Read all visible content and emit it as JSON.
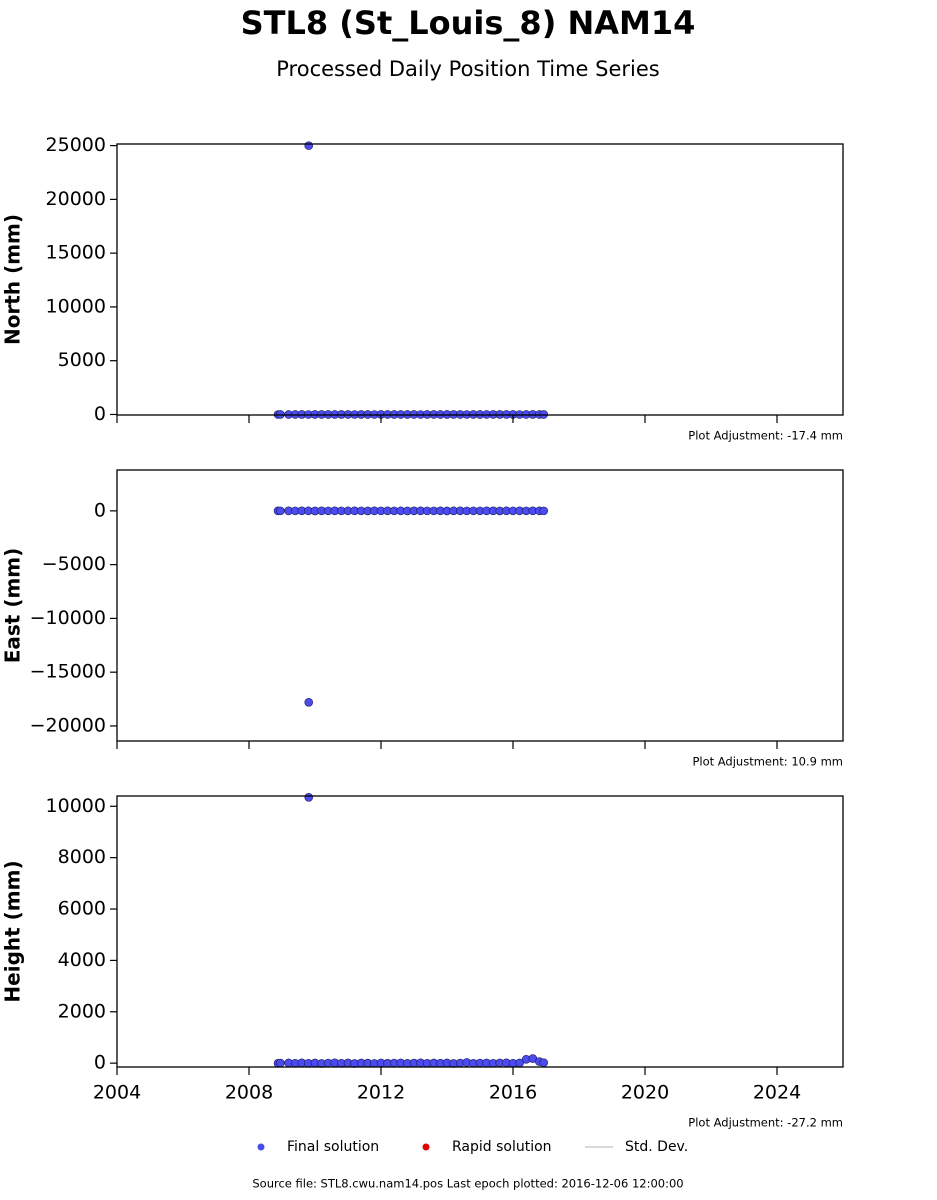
{
  "title": "STL8 (St_Louis_8) NAM14",
  "subtitle": "Processed Daily Position Time Series",
  "legend": [
    {
      "name": "Final solution",
      "color": "#4b4bf0",
      "marker": "circle"
    },
    {
      "name": "Rapid solution",
      "color": "#e00000",
      "marker": "circle"
    },
    {
      "name": "Std. Dev.",
      "color": "#cccccc",
      "marker": "line"
    }
  ],
  "footer": "Source file: STL8.cwu.nam14.pos  Last epoch plotted: 2016-12-06 12:00:00",
  "chart_data": [
    {
      "type": "scatter",
      "ylabel": "North (mm)",
      "note": "Plot Adjustment: -17.4 mm",
      "color": "#4b4bf0",
      "xlim": [
        2004,
        2026
      ],
      "ylim": [
        -50,
        25150
      ],
      "yticks": [
        0,
        5000,
        10000,
        15000,
        20000,
        25000
      ],
      "x": [
        2008.88,
        2008.95,
        2009.2,
        2009.4,
        2009.6,
        2009.8,
        2009.81,
        2010.0,
        2010.2,
        2010.4,
        2010.6,
        2010.8,
        2011.0,
        2011.2,
        2011.4,
        2011.6,
        2011.8,
        2012.0,
        2012.2,
        2012.4,
        2012.6,
        2012.8,
        2013.0,
        2013.2,
        2013.4,
        2013.6,
        2013.8,
        2014.0,
        2014.2,
        2014.4,
        2014.6,
        2014.8,
        2015.0,
        2015.2,
        2015.4,
        2015.6,
        2015.8,
        2016.0,
        2016.2,
        2016.4,
        2016.6,
        2016.8,
        2016.93
      ],
      "values": [
        -4,
        3,
        -2,
        1,
        5,
        -3,
        25000,
        2,
        -1,
        4,
        -2,
        3,
        0,
        -3,
        2,
        1,
        -4,
        3,
        -1,
        2,
        -2,
        4,
        1,
        -3,
        2,
        0,
        -2,
        3,
        -1,
        1,
        -3,
        2,
        4,
        -2,
        0,
        3,
        -1,
        2,
        -4,
        1,
        3,
        -2,
        0
      ]
    },
    {
      "type": "scatter",
      "ylabel": "East (mm)",
      "note": "Plot Adjustment: 10.9 mm",
      "color": "#4b4bf0",
      "xlim": [
        2004,
        2026
      ],
      "ylim": [
        -21400,
        3800
      ],
      "yticks": [
        {
          "value": -20000,
          "label": "−20000"
        },
        {
          "value": -15000,
          "label": "−15000"
        },
        {
          "value": -10000,
          "label": "−10000"
        },
        {
          "value": -5000,
          "label": "−5000"
        },
        0
      ],
      "x": [
        2008.88,
        2008.95,
        2009.2,
        2009.4,
        2009.6,
        2009.8,
        2009.81,
        2010.0,
        2010.2,
        2010.4,
        2010.6,
        2010.8,
        2011.0,
        2011.2,
        2011.4,
        2011.6,
        2011.8,
        2012.0,
        2012.2,
        2012.4,
        2012.6,
        2012.8,
        2013.0,
        2013.2,
        2013.4,
        2013.6,
        2013.8,
        2014.0,
        2014.2,
        2014.4,
        2014.6,
        2014.8,
        2015.0,
        2015.2,
        2015.4,
        2015.6,
        2015.8,
        2016.0,
        2016.2,
        2016.4,
        2016.6,
        2016.8,
        2016.93
      ],
      "values": [
        3,
        -2,
        4,
        -1,
        2,
        1,
        -17800,
        -3,
        2,
        0,
        3,
        -2,
        1,
        4,
        -1,
        -3,
        2,
        0,
        3,
        -2,
        1,
        -4,
        2,
        3,
        -1,
        0,
        2,
        -3,
        1,
        4,
        -2,
        0,
        -1,
        3,
        2,
        -3,
        1,
        0,
        2,
        -2,
        3,
        1,
        -1
      ]
    },
    {
      "type": "scatter",
      "ylabel": "Height (mm)",
      "note": "Plot Adjustment: -27.2 mm",
      "color": "#4b4bf0",
      "xlim": [
        2004,
        2026
      ],
      "ylim": [
        -150,
        10400
      ],
      "yticks": [
        0,
        2000,
        4000,
        6000,
        8000,
        10000
      ],
      "xticks": [
        2004,
        2008,
        2012,
        2016,
        2020,
        2024
      ],
      "x": [
        2008.88,
        2008.95,
        2009.2,
        2009.4,
        2009.6,
        2009.8,
        2009.81,
        2010.0,
        2010.2,
        2010.4,
        2010.6,
        2010.8,
        2011.0,
        2011.2,
        2011.4,
        2011.6,
        2011.8,
        2012.0,
        2012.2,
        2012.4,
        2012.6,
        2012.8,
        2013.0,
        2013.2,
        2013.4,
        2013.6,
        2013.8,
        2014.0,
        2014.2,
        2014.4,
        2014.6,
        2014.8,
        2015.0,
        2015.2,
        2015.4,
        2015.6,
        2015.8,
        2016.0,
        2016.2,
        2016.4,
        2016.6,
        2016.8,
        2016.93
      ],
      "values": [
        -8,
        5,
        10,
        -6,
        12,
        -4,
        10350,
        8,
        -10,
        6,
        14,
        -5,
        9,
        -12,
        7,
        3,
        -9,
        11,
        -3,
        6,
        10,
        -7,
        4,
        12,
        -6,
        8,
        -2,
        9,
        -11,
        5,
        30,
        -8,
        6,
        10,
        -4,
        7,
        12,
        -5,
        8,
        150,
        180,
        60,
        20
      ]
    }
  ]
}
